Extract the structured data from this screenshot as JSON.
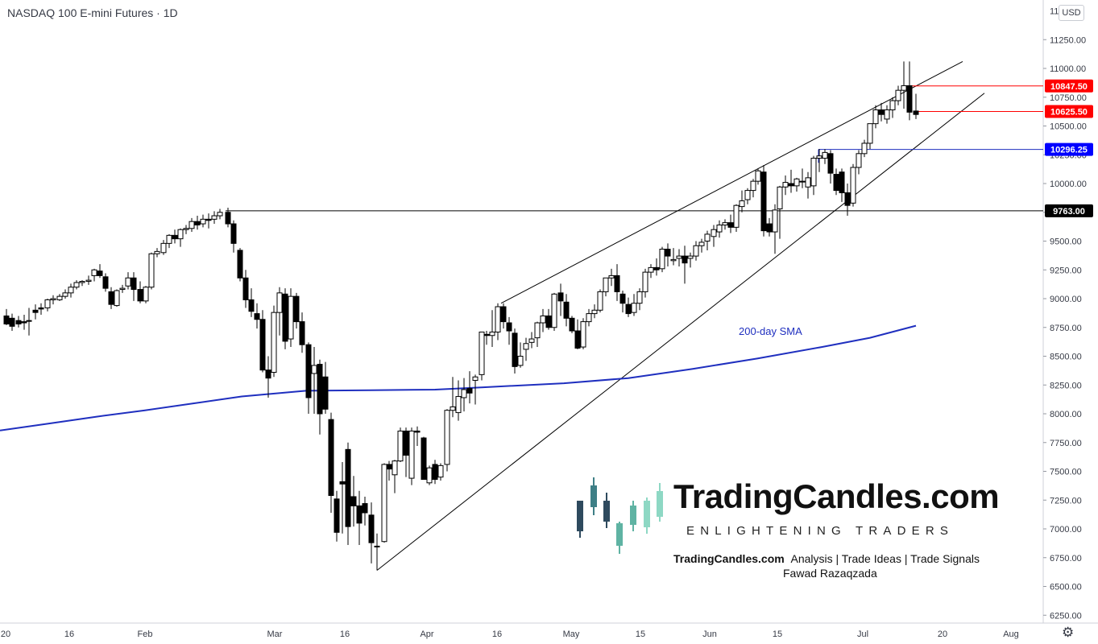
{
  "header": {
    "title": "NASDAQ 100 E-mini Futures · 1D"
  },
  "currency": "USD",
  "settings_icon": "gear-icon",
  "chart_data": {
    "type": "candlestick",
    "title": "NASDAQ 100 E-mini Futures · 1D",
    "ylim": [
      6150,
      11450
    ],
    "y_ticks": [
      6250,
      6500,
      6750,
      7000,
      7250,
      7500,
      7750,
      8000,
      8250,
      8500,
      8750,
      9000,
      9250,
      9500,
      9750,
      10000,
      10250,
      10500,
      10750,
      11000,
      11250
    ],
    "y_tick_labels": [
      "6250.00",
      "6500.00",
      "6750.00",
      "7000.00",
      "7250.00",
      "7500.00",
      "7750.00",
      "8000.00",
      "8250.00",
      "8500.00",
      "8750.00",
      "9000.00",
      "9250.00",
      "9500.00",
      "9750.00",
      "10000.00",
      "10250.00",
      "10500.00",
      "10750.00",
      "11000.00",
      "11250.00"
    ],
    "top_tick_partial": "11",
    "x_tick_labels": [
      "20",
      "16",
      "Feb",
      "Mar",
      "16",
      "Apr",
      "16",
      "May",
      "15",
      "Jun",
      "15",
      "Jul",
      "20",
      "Aug"
    ],
    "price_levels": [
      {
        "label": "10847.50",
        "value": 10847.5,
        "color": "#ff0000"
      },
      {
        "label": "10625.50",
        "value": 10625.5,
        "color": "#ff0000"
      },
      {
        "label": "10296.25",
        "value": 10296.25,
        "color": "#0000ff"
      },
      {
        "label": "9763.00",
        "value": 9763.0,
        "color": "#000000"
      }
    ],
    "sma_label": "200-day SMA",
    "sma": [
      [
        0,
        7855
      ],
      [
        60,
        7915
      ],
      [
        120,
        7975
      ],
      [
        180,
        8030
      ],
      [
        240,
        8090
      ],
      [
        300,
        8150
      ],
      [
        380,
        8200
      ],
      [
        460,
        8205
      ],
      [
        540,
        8210
      ],
      [
        600,
        8230
      ],
      [
        700,
        8265
      ],
      [
        780,
        8310
      ],
      [
        860,
        8390
      ],
      [
        940,
        8480
      ],
      [
        1020,
        8580
      ],
      [
        1080,
        8660
      ],
      [
        1137,
        8765
      ]
    ],
    "trendlines": [
      {
        "from": [
          622,
          8960
        ],
        "to": [
          1195,
          11060
        ]
      },
      {
        "from": [
          468,
          6640
        ],
        "to": [
          1222,
          10785
        ]
      },
      {
        "from": [
          280,
          9763
        ],
        "to": [
          1295,
          9763
        ]
      },
      {
        "from": [
          1016,
          10296.25
        ],
        "to": [
          1295,
          10296.25
        ]
      },
      {
        "from": [
          1016,
          10296.25
        ],
        "to": [
          1016,
          10180
        ]
      },
      {
        "from": [
          1125,
          10847.5
        ],
        "to": [
          1295,
          10847.5
        ]
      },
      {
        "from": [
          1137,
          10625.5
        ],
        "to": [
          1295,
          10625.5
        ]
      }
    ],
    "candles": [
      [
        8,
        8850,
        8910,
        8780,
        8770
      ],
      [
        15,
        8830,
        8870,
        8760,
        8720
      ],
      [
        23,
        8810,
        8850,
        8780,
        8750
      ],
      [
        30,
        8800,
        8860,
        8790,
        8730
      ],
      [
        36,
        8810,
        8920,
        8810,
        8680
      ],
      [
        44,
        8900,
        8950,
        8880,
        8820
      ],
      [
        51,
        8920,
        8960,
        8910,
        8860
      ],
      [
        59,
        8920,
        9000,
        8990,
        8890
      ],
      [
        66,
        8990,
        9030,
        9000,
        8950
      ],
      [
        74,
        8990,
        9040,
        9020,
        8980
      ],
      [
        81,
        9020,
        9080,
        9050,
        9000
      ],
      [
        88,
        9050,
        9130,
        9100,
        9010
      ],
      [
        95,
        9100,
        9160,
        9140,
        9080
      ],
      [
        102,
        9140,
        9160,
        9150,
        9110
      ],
      [
        110,
        9150,
        9200,
        9160,
        9120
      ],
      [
        117,
        9200,
        9260,
        9250,
        9150
      ],
      [
        124,
        9240,
        9300,
        9200,
        9180
      ],
      [
        131,
        9190,
        9220,
        9090,
        9060
      ],
      [
        138,
        9060,
        9100,
        8950,
        8910
      ],
      [
        145,
        8940,
        9080,
        9070,
        8930
      ],
      [
        152,
        9080,
        9120,
        9090,
        9050
      ],
      [
        159,
        9110,
        9230,
        9180,
        9080
      ],
      [
        166,
        9180,
        9230,
        9080,
        8980
      ],
      [
        174,
        9080,
        9150,
        8980,
        8960
      ],
      [
        181,
        8980,
        9110,
        9100,
        8960
      ],
      [
        188,
        9100,
        9400,
        9390,
        9080
      ],
      [
        195,
        9390,
        9440,
        9410,
        9360
      ],
      [
        203,
        9400,
        9510,
        9480,
        9380
      ],
      [
        210,
        9480,
        9560,
        9550,
        9440
      ],
      [
        217,
        9550,
        9600,
        9520,
        9480
      ],
      [
        224,
        9520,
        9610,
        9600,
        9450
      ],
      [
        231,
        9600,
        9640,
        9610,
        9560
      ],
      [
        238,
        9610,
        9700,
        9670,
        9580
      ],
      [
        245,
        9670,
        9720,
        9640,
        9600
      ],
      [
        252,
        9650,
        9730,
        9690,
        9620
      ],
      [
        259,
        9690,
        9740,
        9680,
        9610
      ],
      [
        266,
        9690,
        9760,
        9720,
        9650
      ],
      [
        273,
        9720,
        9780,
        9750,
        9690
      ],
      [
        283,
        9750,
        9790,
        9650,
        9620
      ],
      [
        290,
        9650,
        9680,
        9480,
        9400
      ],
      [
        298,
        9420,
        9440,
        9180,
        9150
      ],
      [
        305,
        9180,
        9250,
        8990,
        8920
      ],
      [
        312,
        8990,
        9090,
        8890,
        8840
      ],
      [
        319,
        8870,
        8960,
        8820,
        8740
      ],
      [
        326,
        8820,
        8900,
        8380,
        8360
      ],
      [
        333,
        8380,
        8500,
        8310,
        8140
      ],
      [
        340,
        8360,
        8940,
        8880,
        8320
      ],
      [
        347,
        8880,
        9100,
        9050,
        8680
      ],
      [
        354,
        9040,
        9090,
        8630,
        8560
      ],
      [
        361,
        8650,
        9090,
        9020,
        8580
      ],
      [
        368,
        9020,
        9050,
        8800,
        8740
      ],
      [
        375,
        8800,
        8880,
        8600,
        8530
      ],
      [
        383,
        8600,
        8620,
        8140,
        8000
      ],
      [
        390,
        8350,
        8580,
        8420,
        8000
      ],
      [
        397,
        8430,
        8470,
        8000,
        7820
      ],
      [
        404,
        8320,
        8450,
        8040,
        8000
      ],
      [
        411,
        7950,
        8010,
        7290,
        7140
      ],
      [
        418,
        7260,
        7330,
        6970,
        6890
      ],
      [
        425,
        7410,
        7580,
        7390,
        6960
      ],
      [
        432,
        7690,
        7750,
        7020,
        6860
      ],
      [
        439,
        7280,
        7460,
        7200,
        7020
      ],
      [
        446,
        7200,
        7330,
        7050,
        6860
      ],
      [
        453,
        7220,
        7280,
        7140,
        7030
      ],
      [
        461,
        7120,
        7230,
        6880,
        6700
      ],
      [
        468,
        6850,
        6960,
        6850,
        6640
      ],
      [
        477,
        6890,
        7570,
        7560,
        6880
      ],
      [
        483,
        7560,
        7590,
        7520,
        7420
      ],
      [
        490,
        7470,
        7600,
        7590,
        7310
      ],
      [
        497,
        7590,
        7880,
        7850,
        7580
      ],
      [
        504,
        7850,
        7880,
        7640,
        7450
      ],
      [
        511,
        7440,
        7880,
        7850,
        7380
      ],
      [
        518,
        7850,
        7890,
        7840,
        7720
      ],
      [
        526,
        7790,
        7800,
        7430,
        7430
      ],
      [
        533,
        7400,
        7550,
        7530,
        7380
      ],
      [
        540,
        7560,
        7600,
        7430,
        7390
      ],
      [
        547,
        7450,
        7570,
        7550,
        7420
      ],
      [
        555,
        7560,
        8040,
        8030,
        7500
      ],
      [
        562,
        8030,
        8320,
        8060,
        7970
      ],
      [
        569,
        8010,
        8290,
        8150,
        7940
      ],
      [
        576,
        8140,
        8310,
        8210,
        8020
      ],
      [
        583,
        8220,
        8370,
        8180,
        8090
      ],
      [
        590,
        8290,
        8340,
        8320,
        8080
      ],
      [
        598,
        8340,
        8620,
        8710,
        8290
      ],
      [
        604,
        8690,
        8720,
        8680,
        8600
      ],
      [
        611,
        8680,
        8900,
        8710,
        8580
      ],
      [
        618,
        8710,
        8960,
        8930,
        8640
      ],
      [
        625,
        8930,
        8960,
        8800,
        8740
      ],
      [
        632,
        8790,
        8840,
        8720,
        8600
      ],
      [
        639,
        8700,
        8740,
        8410,
        8350
      ],
      [
        646,
        8420,
        8620,
        8500,
        8400
      ],
      [
        653,
        8560,
        8660,
        8610,
        8460
      ],
      [
        660,
        8620,
        8710,
        8650,
        8570
      ],
      [
        667,
        8660,
        8800,
        8790,
        8580
      ],
      [
        674,
        8790,
        8910,
        8850,
        8710
      ],
      [
        681,
        8850,
        8910,
        8750,
        8730
      ],
      [
        688,
        8750,
        9050,
        9040,
        8720
      ],
      [
        696,
        9050,
        9130,
        8980,
        8850
      ],
      [
        703,
        8970,
        9040,
        8830,
        8760
      ],
      [
        710,
        8830,
        8850,
        8720,
        8700
      ],
      [
        717,
        8720,
        8820,
        8570,
        8560
      ],
      [
        724,
        8580,
        8830,
        8800,
        8560
      ],
      [
        731,
        8800,
        8910,
        8870,
        8760
      ],
      [
        738,
        8870,
        8950,
        8900,
        8830
      ],
      [
        745,
        8900,
        9080,
        9060,
        8880
      ],
      [
        752,
        9060,
        9170,
        9180,
        9020
      ],
      [
        759,
        9180,
        9260,
        9200,
        9110
      ],
      [
        766,
        9200,
        9300,
        9060,
        8980
      ],
      [
        773,
        9040,
        9070,
        8960,
        8880
      ],
      [
        780,
        8950,
        9010,
        8870,
        8840
      ],
      [
        787,
        8880,
        9040,
        8960,
        8850
      ],
      [
        794,
        8960,
        9090,
        9060,
        8900
      ],
      [
        801,
        9060,
        9260,
        9230,
        9010
      ],
      [
        808,
        9230,
        9300,
        9270,
        9180
      ],
      [
        815,
        9270,
        9350,
        9250,
        9200
      ],
      [
        822,
        9260,
        9450,
        9430,
        9230
      ],
      [
        829,
        9430,
        9480,
        9370,
        9280
      ],
      [
        836,
        9330,
        9440,
        9340,
        9290
      ],
      [
        843,
        9350,
        9430,
        9370,
        9280
      ],
      [
        850,
        9370,
        9460,
        9310,
        9130
      ],
      [
        857,
        9350,
        9400,
        9370,
        9270
      ],
      [
        864,
        9370,
        9500,
        9460,
        9330
      ],
      [
        871,
        9460,
        9520,
        9490,
        9400
      ],
      [
        878,
        9500,
        9590,
        9560,
        9420
      ],
      [
        886,
        9540,
        9640,
        9600,
        9450
      ],
      [
        893,
        9580,
        9680,
        9640,
        9530
      ],
      [
        900,
        9640,
        9690,
        9660,
        9600
      ],
      [
        907,
        9660,
        9730,
        9620,
        9570
      ],
      [
        914,
        9620,
        9820,
        9810,
        9580
      ],
      [
        921,
        9800,
        9940,
        9850,
        9750
      ],
      [
        928,
        9860,
        9960,
        9940,
        9820
      ],
      [
        935,
        9940,
        10040,
        10020,
        9880
      ],
      [
        941,
        10020,
        10130,
        10110,
        9990
      ],
      [
        948,
        10100,
        10160,
        9590,
        9540
      ],
      [
        955,
        9650,
        9700,
        9580,
        9540
      ],
      [
        962,
        9580,
        9820,
        9770,
        9390
      ],
      [
        968,
        9780,
        9980,
        9970,
        9520
      ],
      [
        975,
        9970,
        10070,
        10010,
        9900
      ],
      [
        982,
        10000,
        10120,
        9980,
        9920
      ],
      [
        989,
        9980,
        10050,
        10040,
        9930
      ],
      [
        996,
        10020,
        10130,
        10020,
        9960
      ],
      [
        1003,
        9970,
        10100,
        10050,
        9870
      ],
      [
        1010,
        9980,
        10240,
        10220,
        9900
      ],
      [
        1017,
        10220,
        10300,
        10240,
        10100
      ],
      [
        1024,
        10220,
        10300,
        10270,
        10170
      ],
      [
        1031,
        10260,
        10290,
        10090,
        10000
      ],
      [
        1038,
        10080,
        10130,
        9940,
        9900
      ],
      [
        1045,
        10100,
        10130,
        9920,
        9840
      ],
      [
        1052,
        9920,
        10000,
        9810,
        9720
      ],
      [
        1059,
        9830,
        10170,
        10140,
        9800
      ],
      [
        1066,
        10140,
        10290,
        10260,
        10080
      ],
      [
        1073,
        10260,
        10380,
        10350,
        10230
      ],
      [
        1080,
        10350,
        10520,
        10520,
        10300
      ],
      [
        1087,
        10520,
        10680,
        10640,
        10480
      ],
      [
        1094,
        10640,
        10700,
        10600,
        10540
      ],
      [
        1101,
        10560,
        10680,
        10640,
        10520
      ],
      [
        1108,
        10640,
        10750,
        10720,
        10570
      ],
      [
        1115,
        10720,
        10850,
        10810,
        10680
      ],
      [
        1122,
        10810,
        11060,
        10850,
        10650
      ],
      [
        1129,
        10850,
        11060,
        10620,
        10550
      ],
      [
        1137,
        10630,
        10780,
        10600,
        10560
      ]
    ]
  },
  "branding": {
    "name": "TradingCandles.com",
    "tagline": "ENLIGHTENING TRADERS",
    "line1_bold": "TradingCandles.com",
    "line1_rest": "Analysis | Trade Ideas | Trade Signals",
    "author": "Fawad Razaqzada",
    "logo_colors": [
      "#2e4a5e",
      "#3e7f86",
      "#5fb3a3",
      "#8ed8c4"
    ]
  }
}
